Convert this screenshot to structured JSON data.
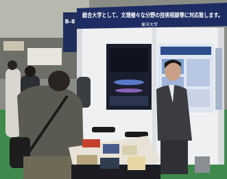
{
  "sign": {
    "label": "B-8"
  },
  "banner": {
    "text": "総合大学として、文理様々な分野の技術相談等に対応致します。",
    "organization": "東洋大学"
  }
}
